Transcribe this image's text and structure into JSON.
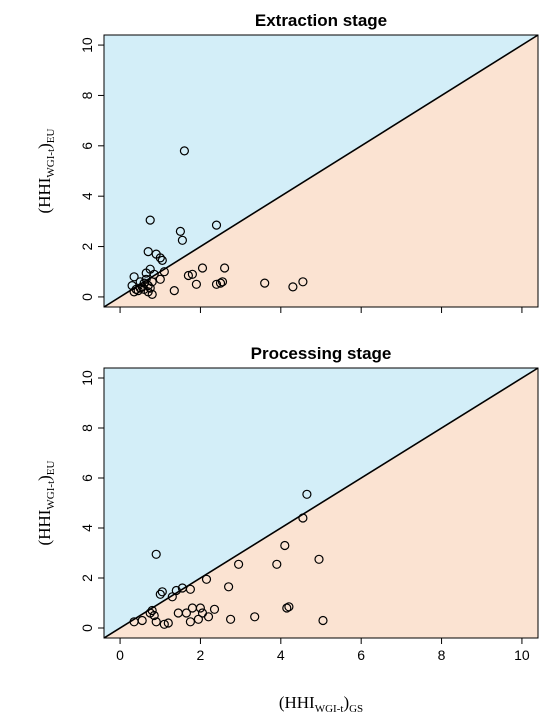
{
  "chart_data": [
    {
      "type": "scatter",
      "title": "Extraction stage",
      "ylabel": {
        "base": "(HHI",
        "sub": "WGI-t",
        "close": ")",
        "sub2": "EU"
      },
      "xlim": [
        -0.4,
        10.4
      ],
      "ylim": [
        -0.4,
        10.4
      ],
      "xticks": [
        "0",
        "2",
        "4",
        "6",
        "8",
        "10"
      ],
      "yticks": [
        "0",
        "2",
        "4",
        "6",
        "8",
        "10"
      ],
      "regions": {
        "above_diagonal": "#d3eef8",
        "below_diagonal": "#fbe3d2"
      },
      "reference_line": "y = x",
      "points": [
        {
          "x": 0.3,
          "y": 0.45
        },
        {
          "x": 0.35,
          "y": 0.2
        },
        {
          "x": 0.4,
          "y": 0.3
        },
        {
          "x": 0.45,
          "y": 0.25
        },
        {
          "x": 0.5,
          "y": 0.35
        },
        {
          "x": 0.35,
          "y": 0.8
        },
        {
          "x": 0.5,
          "y": 0.6
        },
        {
          "x": 0.55,
          "y": 0.4
        },
        {
          "x": 0.6,
          "y": 0.3
        },
        {
          "x": 0.6,
          "y": 0.55
        },
        {
          "x": 0.65,
          "y": 0.95
        },
        {
          "x": 0.65,
          "y": 0.7
        },
        {
          "x": 0.7,
          "y": 0.45
        },
        {
          "x": 0.7,
          "y": 0.2
        },
        {
          "x": 0.75,
          "y": 0.35
        },
        {
          "x": 0.75,
          "y": 1.1
        },
        {
          "x": 0.8,
          "y": 0.6
        },
        {
          "x": 0.8,
          "y": 0.1
        },
        {
          "x": 0.85,
          "y": 0.9
        },
        {
          "x": 0.7,
          "y": 1.8
        },
        {
          "x": 0.9,
          "y": 1.7
        },
        {
          "x": 1.0,
          "y": 1.55
        },
        {
          "x": 1.05,
          "y": 1.45
        },
        {
          "x": 1.1,
          "y": 1.0
        },
        {
          "x": 1.0,
          "y": 0.7
        },
        {
          "x": 0.75,
          "y": 3.05
        },
        {
          "x": 1.5,
          "y": 2.6
        },
        {
          "x": 1.55,
          "y": 2.25
        },
        {
          "x": 1.6,
          "y": 5.8
        },
        {
          "x": 2.4,
          "y": 2.85
        },
        {
          "x": 1.35,
          "y": 0.25
        },
        {
          "x": 1.7,
          "y": 0.85
        },
        {
          "x": 1.8,
          "y": 0.9
        },
        {
          "x": 1.9,
          "y": 0.5
        },
        {
          "x": 2.05,
          "y": 1.15
        },
        {
          "x": 2.4,
          "y": 0.5
        },
        {
          "x": 2.5,
          "y": 0.55
        },
        {
          "x": 2.55,
          "y": 0.6
        },
        {
          "x": 2.6,
          "y": 1.15
        },
        {
          "x": 3.6,
          "y": 0.55
        },
        {
          "x": 4.3,
          "y": 0.4
        },
        {
          "x": 4.55,
          "y": 0.6
        }
      ]
    },
    {
      "type": "scatter",
      "title": "Processing stage",
      "xlabel": {
        "base": "(HHI",
        "sub": "WGI-t",
        "close": ")",
        "sub2": "GS"
      },
      "ylabel": {
        "base": "(HHI",
        "sub": "WGI-t",
        "close": ")",
        "sub2": "EU"
      },
      "xlim": [
        -0.4,
        10.4
      ],
      "ylim": [
        -0.4,
        10.4
      ],
      "xticks": [
        "0",
        "2",
        "4",
        "6",
        "8",
        "10"
      ],
      "yticks": [
        "0",
        "2",
        "4",
        "6",
        "8",
        "10"
      ],
      "regions": {
        "above_diagonal": "#d3eef8",
        "below_diagonal": "#fbe3d2"
      },
      "reference_line": "y = x",
      "points": [
        {
          "x": 0.35,
          "y": 0.25
        },
        {
          "x": 0.55,
          "y": 0.3
        },
        {
          "x": 0.75,
          "y": 0.6
        },
        {
          "x": 0.8,
          "y": 0.7
        },
        {
          "x": 0.85,
          "y": 0.5
        },
        {
          "x": 0.9,
          "y": 0.25
        },
        {
          "x": 0.9,
          "y": 2.95
        },
        {
          "x": 1.0,
          "y": 1.35
        },
        {
          "x": 1.05,
          "y": 1.45
        },
        {
          "x": 1.1,
          "y": 0.15
        },
        {
          "x": 1.2,
          "y": 0.2
        },
        {
          "x": 1.3,
          "y": 1.25
        },
        {
          "x": 1.4,
          "y": 1.5
        },
        {
          "x": 1.45,
          "y": 0.6
        },
        {
          "x": 1.55,
          "y": 1.6
        },
        {
          "x": 1.65,
          "y": 0.6
        },
        {
          "x": 1.75,
          "y": 1.55
        },
        {
          "x": 1.75,
          "y": 0.25
        },
        {
          "x": 1.8,
          "y": 0.8
        },
        {
          "x": 1.95,
          "y": 0.35
        },
        {
          "x": 2.0,
          "y": 0.8
        },
        {
          "x": 2.05,
          "y": 0.6
        },
        {
          "x": 2.15,
          "y": 1.95
        },
        {
          "x": 2.2,
          "y": 0.45
        },
        {
          "x": 2.35,
          "y": 0.75
        },
        {
          "x": 2.7,
          "y": 1.65
        },
        {
          "x": 2.75,
          "y": 0.35
        },
        {
          "x": 2.95,
          "y": 2.55
        },
        {
          "x": 3.35,
          "y": 0.45
        },
        {
          "x": 3.9,
          "y": 2.55
        },
        {
          "x": 4.1,
          "y": 3.3
        },
        {
          "x": 4.15,
          "y": 0.8
        },
        {
          "x": 4.2,
          "y": 0.85
        },
        {
          "x": 4.55,
          "y": 4.4
        },
        {
          "x": 4.65,
          "y": 5.35
        },
        {
          "x": 4.95,
          "y": 2.75
        },
        {
          "x": 5.05,
          "y": 0.3
        }
      ]
    }
  ]
}
